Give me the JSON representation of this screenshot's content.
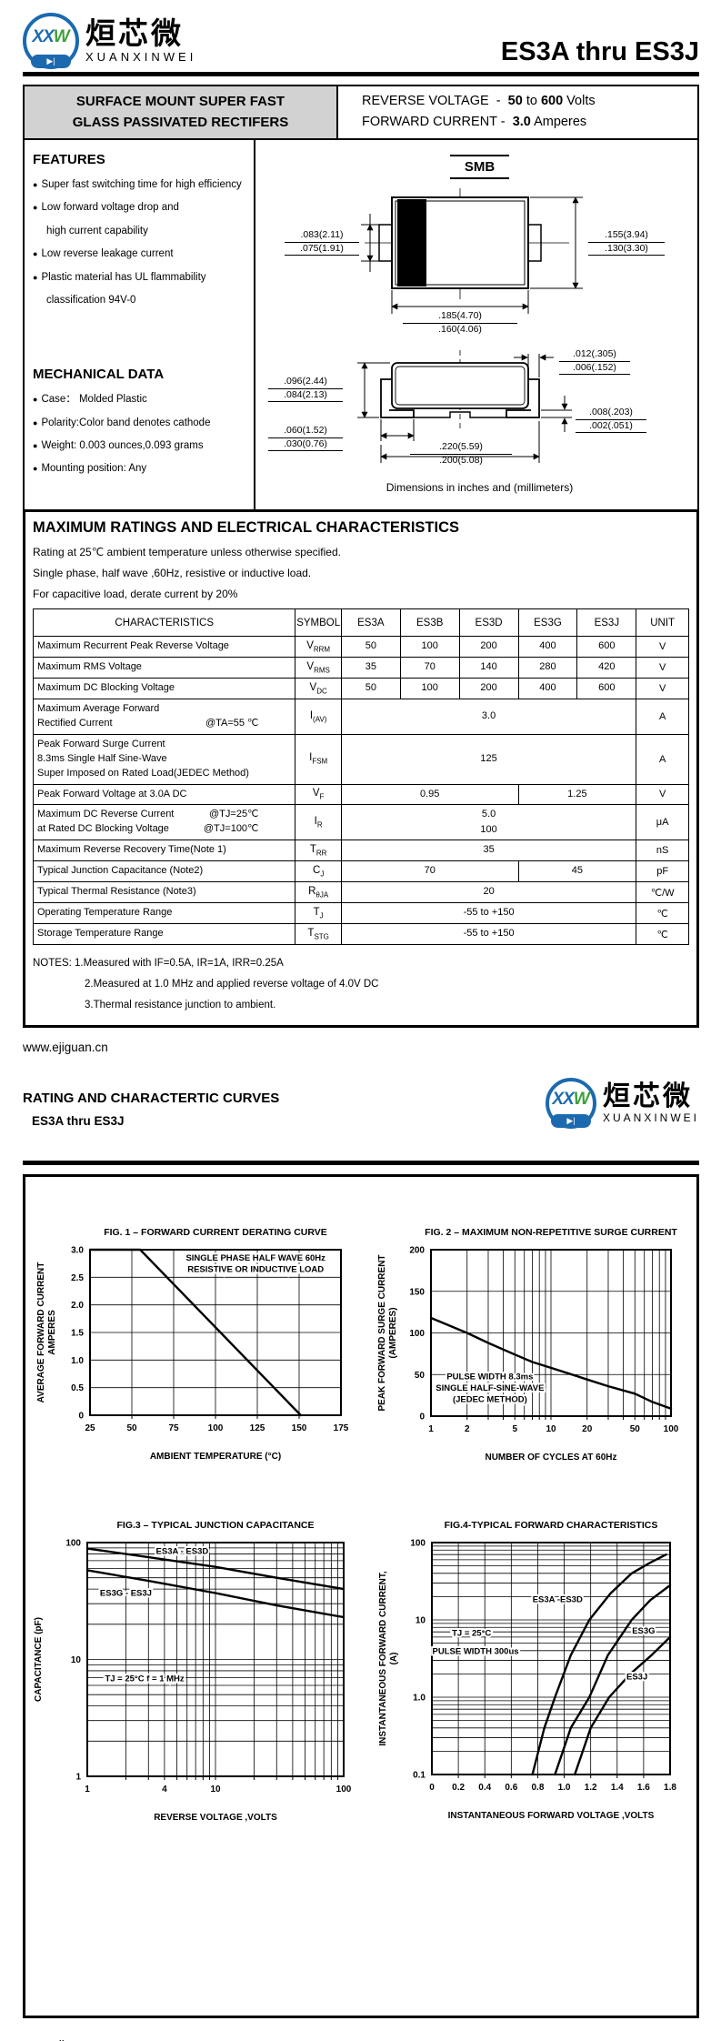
{
  "brand": {
    "logo_text_xx": "XX",
    "logo_text_w": "W",
    "diode_symbol": "▶|",
    "cn_name": "烜芯微",
    "en_name": "XUANXINWEI"
  },
  "part_range": "ES3A thru ES3J",
  "footer_url": "www.ejiguan.cn",
  "title_box": {
    "left_line1": "SURFACE MOUNT SUPER FAST",
    "left_line2": "GLASS PASSIVATED RECTIFERS",
    "reverse_voltage": {
      "label": "REVERSE VOLTAGE",
      "dash": "-",
      "v1": "50",
      "to": "to",
      "v2": "600",
      "unit": "Volts"
    },
    "forward_current": {
      "label": "FORWARD CURRENT",
      "dash": "-",
      "v1": "3.0",
      "unit": "Amperes"
    }
  },
  "features": {
    "heading": "FEATURES",
    "items": [
      {
        "bullet": true,
        "text": "Super fast switching time for high efficiency"
      },
      {
        "bullet": true,
        "text": "Low forward voltage drop and"
      },
      {
        "bullet": false,
        "text": "high current capability"
      },
      {
        "bullet": true,
        "text": "Low reverse leakage current"
      },
      {
        "bullet": true,
        "text": "Plastic material has UL flammability"
      },
      {
        "bullet": false,
        "text": "classification 94V-0"
      }
    ]
  },
  "mechanical": {
    "heading": "MECHANICAL DATA",
    "items": [
      {
        "bullet": true,
        "text": "Case：  Molded Plastic"
      },
      {
        "bullet": true,
        "text": "Polarity:Color band denotes cathode"
      },
      {
        "bullet": true,
        "text": "Weight: 0.003 ounces,0.093 grams"
      },
      {
        "bullet": true,
        "text": "Mounting position: Any"
      }
    ]
  },
  "package": {
    "name": "SMB",
    "top_view": {
      "left_dim": [
        ".083(2.11)",
        ".075(1.91)"
      ],
      "right_dim": [
        ".155(3.94)",
        ".130(3.30)"
      ],
      "bottom_dim": [
        ".185(4.70)",
        ".160(4.06)"
      ]
    },
    "side_view": {
      "top_right_dim": [
        ".012(.305)",
        ".006(.152)"
      ],
      "left_dim": [
        ".096(2.44)",
        ".084(2.13)"
      ],
      "bottom_left_dim": [
        ".060(1.52)",
        ".030(0.76)"
      ],
      "right_dim": [
        ".008(.203)",
        ".002(.051)"
      ],
      "bottom_dim": [
        ".220(5.59)",
        ".200(5.08)"
      ]
    },
    "caption": "Dimensions in inches and (millimeters)"
  },
  "ratings": {
    "heading": "MAXIMUM RATINGS AND ELECTRICAL CHARACTERISTICS",
    "conditions": [
      "Rating at 25℃ ambient temperature unless otherwise specified.",
      "Single phase, half wave ,60Hz, resistive or inductive load.",
      "For capacitive load, derate current by 20%"
    ],
    "table": {
      "headers": [
        "CHARACTERISTICS",
        "SYMBOL",
        "ES3A",
        "ES3B",
        "ES3D",
        "ES3G",
        "ES3J",
        "UNIT"
      ],
      "rows": [
        {
          "label": [
            "Maximum Recurrent Peak Reverse Voltage"
          ],
          "symbol": [
            "V",
            "RRM"
          ],
          "cells": [
            {
              "t": "50"
            },
            {
              "t": "100"
            },
            {
              "t": "200"
            },
            {
              "t": "400"
            },
            {
              "t": "600"
            }
          ],
          "unit": "V"
        },
        {
          "label": [
            "Maximum RMS Voltage"
          ],
          "symbol": [
            "V",
            "RMS"
          ],
          "cells": [
            {
              "t": "35"
            },
            {
              "t": "70"
            },
            {
              "t": "140"
            },
            {
              "t": "280"
            },
            {
              "t": "420"
            }
          ],
          "unit": "V"
        },
        {
          "label": [
            "Maximum DC Blocking Voltage"
          ],
          "symbol": [
            "V",
            "DC"
          ],
          "cells": [
            {
              "t": "50"
            },
            {
              "t": "100"
            },
            {
              "t": "200"
            },
            {
              "t": "400"
            },
            {
              "t": "600"
            }
          ],
          "unit": "V"
        },
        {
          "label": [
            "Maximum Average Forward",
            [
              "Rectified Current",
              "@TA=55 ℃"
            ]
          ],
          "symbol": [
            "I",
            "(AV)"
          ],
          "cells": [
            {
              "t": "3.0",
              "span": 5
            }
          ],
          "unit": "A"
        },
        {
          "label": [
            "Peak Forward Surge Current",
            "8.3ms Single Half Sine-Wave",
            "Super Imposed on Rated Load(JEDEC Method)"
          ],
          "symbol": [
            "I",
            "FSM"
          ],
          "cells": [
            {
              "t": "125",
              "span": 5
            }
          ],
          "unit": "A"
        },
        {
          "label": [
            "Peak Forward Voltage at 3.0A DC"
          ],
          "symbol": [
            "V",
            "F"
          ],
          "cells": [
            {
              "t": "0.95",
              "span": 3
            },
            {
              "t": "1.25",
              "span": 2
            }
          ],
          "unit": "V"
        },
        {
          "label": [
            [
              "Maximum DC Reverse Current",
              "@TJ=25℃"
            ],
            [
              "at Rated DC Blocking Voltage",
              "@TJ=100℃"
            ]
          ],
          "symbol": [
            "I",
            "R"
          ],
          "cells": [
            {
              "t": "5.0\n100",
              "span": 5
            }
          ],
          "unit": "μA"
        },
        {
          "label": [
            "Maximum Reverse Recovery Time(Note 1)"
          ],
          "symbol": [
            "T",
            "RR"
          ],
          "cells": [
            {
              "t": "35",
              "span": 5
            }
          ],
          "unit": "nS"
        },
        {
          "label": [
            "Typical Junction  Capacitance (Note2)"
          ],
          "symbol": [
            "C",
            "J"
          ],
          "cells": [
            {
              "t": "70",
              "span": 3
            },
            {
              "t": "45",
              "span": 2
            }
          ],
          "unit": "pF"
        },
        {
          "label": [
            "Typical Thermal Resistance (Note3)"
          ],
          "symbol": [
            "R",
            "θJA"
          ],
          "cells": [
            {
              "t": "20",
              "span": 5
            }
          ],
          "unit": "℃/W"
        },
        {
          "label": [
            "Operating Temperature Range"
          ],
          "symbol": [
            "T",
            "J"
          ],
          "cells": [
            {
              "t": "-55 to +150",
              "span": 5
            }
          ],
          "unit": "℃"
        },
        {
          "label": [
            "Storage Temperature Range"
          ],
          "symbol": [
            "T",
            "STG"
          ],
          "cells": [
            {
              "t": "-55 to +150",
              "span": 5
            }
          ],
          "unit": "℃"
        }
      ]
    },
    "notes": [
      "NOTES: 1.Measured with IF=0.5A, IR=1A, IRR=0.25A",
      "2.Measured at 1.0 MHz and applied reverse voltage of 4.0V DC",
      "3.Thermal resistance junction to ambient."
    ]
  },
  "curves_page": {
    "heading": "RATING AND CHARACTERTIC CURVES",
    "subheading": "ES3A  thru ES3J"
  },
  "chart_data": [
    {
      "id": "fig1",
      "type": "line",
      "title": "FIG. 1 – FORWARD CURRENT DERATING CURVE",
      "xlabel": "AMBIENT TEMPERATURE  (°C)",
      "ylabel_lines": [
        "AVERAGE FORWARD CURRENT",
        "AMPERES"
      ],
      "xscale": "linear",
      "yscale": "linear",
      "xlim": [
        25,
        175
      ],
      "ylim": [
        0,
        3.0
      ],
      "xticks": [
        25,
        50,
        75,
        100,
        125,
        150,
        175
      ],
      "xtick_labels": [
        "25",
        "50",
        "75",
        "100",
        "125",
        "150",
        "175"
      ],
      "yticks": [
        0,
        0.5,
        1.0,
        1.5,
        2.0,
        2.5,
        3.0
      ],
      "ytick_labels": [
        "0",
        "0.5",
        "1.0",
        "1.5",
        "2.0",
        "2.5",
        "3.0"
      ],
      "series": [
        {
          "name": "derating",
          "points": [
            [
              25,
              3.0
            ],
            [
              55,
              3.0
            ],
            [
              151,
              0
            ]
          ]
        }
      ],
      "labels": [
        {
          "lines": [
            "SINGLE PHASE HALF WAVE 60Hz",
            "RESISTIVE OR INDUCTIVE LOAD"
          ],
          "x": 124,
          "y": 2.8
        }
      ]
    },
    {
      "id": "fig2",
      "type": "line",
      "title": "FIG. 2 – MAXIMUM NON-REPETITIVE SURGE CURRENT",
      "xlabel": "NUMBER OF CYCLES AT 60Hz",
      "ylabel_lines": [
        "PEAK FORWARD SURGE CURRENT",
        "(AMPERES)"
      ],
      "xscale": "log",
      "yscale": "linear",
      "xlim": [
        1,
        100
      ],
      "ylim": [
        0,
        200
      ],
      "xticks": [
        1,
        2,
        5,
        10,
        20,
        50,
        100
      ],
      "xtick_labels": [
        "1",
        "2",
        "5",
        "10",
        "20",
        "50",
        "100"
      ],
      "yticks": [
        0,
        50,
        100,
        150,
        200
      ],
      "ytick_labels": [
        "0",
        "50",
        "100",
        "150",
        "200"
      ],
      "series": [
        {
          "name": "surge",
          "points": [
            [
              1,
              118
            ],
            [
              2,
              100
            ],
            [
              3,
              88
            ],
            [
              5,
              74
            ],
            [
              7,
              65
            ],
            [
              10,
              58
            ],
            [
              15,
              50
            ],
            [
              20,
              44
            ],
            [
              30,
              36
            ],
            [
              50,
              27
            ],
            [
              70,
              17
            ],
            [
              100,
              9
            ]
          ]
        }
      ],
      "labels": [
        {
          "lines": [
            "PULSE WIDTH 8.3ms",
            "SINGLE HALF-SINE-WAVE",
            "(JEDEC METHOD)"
          ],
          "x": 3.1,
          "y": 44
        }
      ]
    },
    {
      "id": "fig3",
      "type": "line",
      "title": "FIG.3 – TYPICAL JUNCTION CAPACITANCE",
      "xlabel": "REVERSE VOLTAGE ,VOLTS",
      "ylabel_lines": [
        "CAPACITANCE (pF)"
      ],
      "xscale": "log",
      "yscale": "log",
      "xlim": [
        1,
        100
      ],
      "ylim": [
        1,
        100
      ],
      "xticks": [
        1,
        4,
        10,
        100
      ],
      "xtick_labels": [
        "1",
        "4",
        "10",
        "100"
      ],
      "yticks": [
        1,
        10,
        100
      ],
      "ytick_labels": [
        "1",
        "10",
        "100"
      ],
      "series": [
        {
          "name": "ES3A - ES3D",
          "points": [
            [
              1,
              89
            ],
            [
              3,
              75
            ],
            [
              10,
              62
            ],
            [
              30,
              50
            ],
            [
              100,
              40
            ]
          ]
        },
        {
          "name": "ES3G - ES3J",
          "points": [
            [
              1,
              58
            ],
            [
              3,
              47
            ],
            [
              10,
              37
            ],
            [
              30,
              29
            ],
            [
              100,
              23
            ]
          ]
        }
      ],
      "labels": [
        {
          "lines": [
            "ES3A   - ES3D"
          ],
          "x": 5.5,
          "y": 80
        },
        {
          "lines": [
            "ES3G   - ES3J"
          ],
          "x": 2.0,
          "y": 35
        },
        {
          "lines": [
            "TJ = 25°C f = 1 MHz"
          ],
          "x": 2.8,
          "y": 6.5
        }
      ]
    },
    {
      "id": "fig4",
      "type": "line",
      "title": "FIG.4-TYPICAL FORWARD CHARACTERISTICS",
      "xlabel": "INSTANTANEOUS FORWARD VOLTAGE ,VOLTS",
      "ylabel_lines": [
        "INSTANTANEOUS FORWARD CURRENT,",
        "(A)"
      ],
      "xscale": "linear",
      "yscale": "log",
      "xlim": [
        0,
        1.8
      ],
      "ylim": [
        0.1,
        100
      ],
      "xticks": [
        0,
        0.2,
        0.4,
        0.6,
        0.8,
        1.0,
        1.2,
        1.4,
        1.6,
        1.8
      ],
      "xtick_labels": [
        "0",
        "0.2",
        "0.4",
        "0.6",
        "0.8",
        "1.0",
        "1.2",
        "1.4",
        "1.6",
        "1.8"
      ],
      "yticks": [
        0.1,
        1.0,
        10,
        100
      ],
      "ytick_labels": [
        "0.1",
        "1.0",
        "10",
        "100"
      ],
      "series": [
        {
          "name": "ES3A -ES3D",
          "points": [
            [
              0.76,
              0.1
            ],
            [
              0.85,
              0.4
            ],
            [
              0.93,
              1
            ],
            [
              1.05,
              3.5
            ],
            [
              1.19,
              10
            ],
            [
              1.35,
              22
            ],
            [
              1.51,
              40
            ],
            [
              1.65,
              55
            ],
            [
              1.77,
              70
            ]
          ]
        },
        {
          "name": "ES3G",
          "points": [
            [
              0.93,
              0.1
            ],
            [
              1.05,
              0.4
            ],
            [
              1.19,
              1
            ],
            [
              1.33,
              3.5
            ],
            [
              1.51,
              10
            ],
            [
              1.65,
              18
            ],
            [
              1.8,
              28
            ]
          ]
        },
        {
          "name": "ES3J",
          "points": [
            [
              1.08,
              0.1
            ],
            [
              1.2,
              0.4
            ],
            [
              1.34,
              1
            ],
            [
              1.5,
              2
            ],
            [
              1.66,
              3.5
            ],
            [
              1.8,
              6
            ]
          ]
        }
      ],
      "labels": [
        {
          "lines": [
            "ES3A   -ES3D"
          ],
          "x": 0.95,
          "y": 17
        },
        {
          "lines": [
            "ES3G"
          ],
          "x": 1.6,
          "y": 6.7
        },
        {
          "lines": [
            "ES3J"
          ],
          "x": 1.55,
          "y": 1.7
        },
        {
          "lines": [
            "TJ = 25°C"
          ],
          "x": 0.3,
          "y": 6.2
        },
        {
          "lines": [
            "PULSE WIDTH 300us"
          ],
          "x": 0.33,
          "y": 3.6
        }
      ]
    }
  ]
}
